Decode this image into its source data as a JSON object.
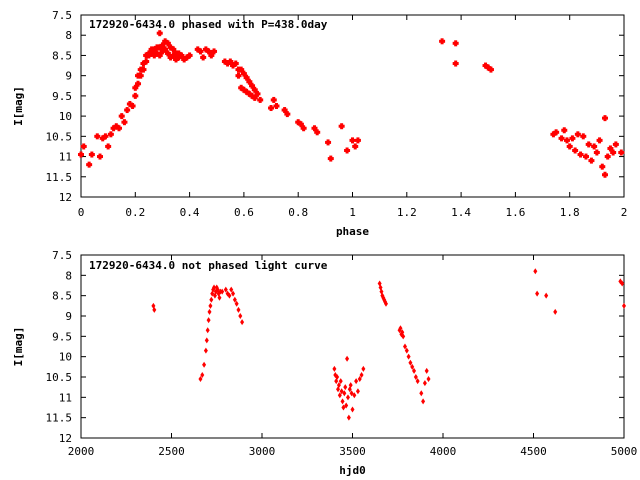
{
  "chart_data": [
    {
      "type": "scatter",
      "title": "172920-6434.0 phased with P=438.0day",
      "xlabel": "phase",
      "ylabel": "I[mag]",
      "xlim": [
        0,
        2
      ],
      "ylim": [
        12,
        7.5
      ],
      "y_inverted": true,
      "x_ticks": [
        "0",
        "0.2",
        "0.4",
        "0.6",
        "0.8",
        "1",
        "1.2",
        "1.4",
        "1.6",
        "1.8",
        "2"
      ],
      "y_ticks": [
        "7.5",
        "8",
        "8.5",
        "9",
        "9.5",
        "10",
        "10.5",
        "11",
        "11.5",
        "12"
      ],
      "grid": false,
      "marker_color": "#ff0000",
      "series": [
        {
          "x": [
            0.0,
            0.01,
            0.03,
            0.04,
            0.06,
            0.07,
            0.08,
            0.09,
            0.1,
            0.11,
            0.12,
            0.13,
            0.14,
            0.15,
            0.16,
            0.17,
            0.18,
            0.19,
            0.2,
            0.2,
            0.21,
            0.21,
            0.22,
            0.22,
            0.23,
            0.23,
            0.24,
            0.24,
            0.25,
            0.25,
            0.26,
            0.26,
            0.27,
            0.27,
            0.28,
            0.28,
            0.29,
            0.29,
            0.29,
            0.3,
            0.3,
            0.31,
            0.31,
            0.32,
            0.32,
            0.33,
            0.33,
            0.34,
            0.34,
            0.35,
            0.35,
            0.36,
            0.36,
            0.37,
            0.38,
            0.39,
            0.4,
            0.43,
            0.44,
            0.45,
            0.46,
            0.47,
            0.48,
            0.49,
            0.53,
            0.54,
            0.55,
            0.56,
            0.57,
            0.58,
            0.58,
            0.59,
            0.59,
            0.6,
            0.6,
            0.61,
            0.61,
            0.62,
            0.62,
            0.63,
            0.63,
            0.64,
            0.64,
            0.65,
            0.66,
            0.7,
            0.71,
            0.72,
            0.75,
            0.76,
            0.8,
            0.81,
            0.82,
            0.86,
            0.87,
            0.91,
            0.92,
            0.96,
            0.98,
            1.0,
            1.01,
            1.02,
            1.33,
            1.38,
            1.38,
            1.49,
            1.5,
            1.51,
            1.74,
            1.75,
            1.77,
            1.78,
            1.79,
            1.8,
            1.81,
            1.82,
            1.83,
            1.84,
            1.85,
            1.86,
            1.87,
            1.88,
            1.89,
            1.9,
            1.91,
            1.92,
            1.93,
            1.93,
            1.94,
            1.95,
            1.96,
            1.97,
            1.99
          ],
          "y": [
            10.95,
            10.75,
            11.2,
            10.95,
            10.5,
            11.0,
            10.55,
            10.5,
            10.75,
            10.45,
            10.3,
            10.25,
            10.3,
            10.0,
            10.15,
            9.85,
            9.7,
            9.75,
            9.5,
            9.3,
            9.2,
            9.0,
            9.0,
            8.85,
            8.85,
            8.7,
            8.65,
            8.5,
            8.5,
            8.45,
            8.4,
            8.35,
            8.35,
            8.5,
            8.3,
            8.45,
            7.95,
            8.3,
            8.5,
            8.25,
            8.4,
            8.15,
            8.35,
            8.2,
            8.45,
            8.3,
            8.55,
            8.35,
            8.5,
            8.45,
            8.6,
            8.45,
            8.55,
            8.5,
            8.6,
            8.55,
            8.5,
            8.35,
            8.4,
            8.55,
            8.35,
            8.4,
            8.5,
            8.4,
            8.65,
            8.7,
            8.65,
            8.75,
            8.7,
            8.85,
            9.0,
            8.85,
            9.3,
            8.95,
            9.35,
            9.05,
            9.4,
            9.15,
            9.45,
            9.25,
            9.5,
            9.35,
            9.55,
            9.45,
            9.6,
            9.8,
            9.6,
            9.75,
            9.85,
            9.95,
            10.15,
            10.2,
            10.3,
            10.3,
            10.4,
            10.65,
            11.05,
            10.25,
            10.85,
            10.6,
            10.75,
            10.6,
            8.15,
            8.2,
            8.7,
            8.75,
            8.8,
            8.85,
            10.45,
            10.4,
            10.55,
            10.35,
            10.6,
            10.75,
            10.55,
            10.85,
            10.45,
            10.95,
            10.5,
            11.0,
            10.7,
            11.1,
            10.75,
            10.9,
            10.6,
            11.25,
            11.45,
            10.05,
            11.0,
            10.8,
            10.9,
            10.7,
            10.9
          ]
        }
      ]
    },
    {
      "type": "scatter",
      "title": "172920-6434.0 not phased light curve",
      "xlabel": "hjd0",
      "ylabel": "I[mag]",
      "xlim": [
        2000,
        5000
      ],
      "ylim": [
        12,
        7.5
      ],
      "y_inverted": true,
      "x_ticks": [
        "2000",
        "2500",
        "3000",
        "3500",
        "4000",
        "4500",
        "5000"
      ],
      "y_ticks": [
        "7.5",
        "8",
        "8.5",
        "9",
        "9.5",
        "10",
        "10.5",
        "11",
        "11.5",
        "12"
      ],
      "grid": false,
      "marker_color": "#ff0000",
      "series": [
        {
          "x": [
            2400,
            2405,
            2660,
            2670,
            2680,
            2690,
            2695,
            2700,
            2705,
            2710,
            2715,
            2720,
            2725,
            2730,
            2735,
            2740,
            2745,
            2750,
            2755,
            2760,
            2765,
            2770,
            2780,
            2800,
            2810,
            2820,
            2830,
            2840,
            2850,
            2860,
            2870,
            2880,
            2890,
            3400,
            3405,
            3410,
            3415,
            3420,
            3425,
            3430,
            3435,
            3440,
            3445,
            3450,
            3455,
            3460,
            3465,
            3470,
            3475,
            3480,
            3485,
            3490,
            3495,
            3500,
            3510,
            3520,
            3530,
            3540,
            3550,
            3560,
            3650,
            3655,
            3660,
            3665,
            3670,
            3675,
            3680,
            3685,
            3760,
            3765,
            3770,
            3775,
            3780,
            3790,
            3800,
            3810,
            3820,
            3830,
            3840,
            3850,
            3860,
            3880,
            3890,
            3900,
            3910,
            3920,
            4510,
            4520,
            4570,
            4620,
            4980,
            4990,
            5000
          ],
          "y": [
            8.75,
            8.85,
            10.55,
            10.45,
            10.2,
            9.85,
            9.6,
            9.35,
            9.1,
            8.9,
            8.75,
            8.6,
            8.45,
            8.35,
            8.3,
            8.5,
            8.4,
            8.3,
            8.35,
            8.45,
            8.55,
            8.4,
            8.4,
            8.35,
            8.45,
            8.5,
            8.35,
            8.45,
            8.6,
            8.7,
            8.85,
            9.0,
            9.15,
            10.3,
            10.45,
            10.6,
            10.5,
            10.8,
            10.7,
            10.95,
            10.6,
            10.85,
            11.1,
            11.25,
            10.9,
            10.75,
            11.2,
            10.05,
            11.0,
            11.5,
            10.8,
            10.7,
            10.9,
            11.3,
            10.95,
            10.6,
            10.85,
            10.55,
            10.45,
            10.3,
            8.2,
            8.3,
            8.4,
            8.5,
            8.55,
            8.6,
            8.65,
            8.7,
            9.35,
            9.3,
            9.45,
            9.4,
            9.5,
            9.75,
            9.85,
            10.0,
            10.15,
            10.25,
            10.35,
            10.5,
            10.6,
            10.9,
            11.1,
            10.65,
            10.35,
            10.55,
            7.9,
            8.45,
            8.5,
            8.9,
            8.15,
            8.2,
            8.75
          ]
        }
      ]
    }
  ]
}
